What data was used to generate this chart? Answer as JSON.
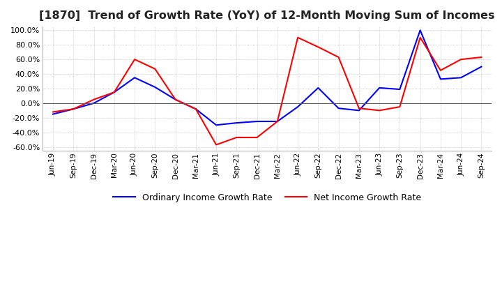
{
  "title": "[1870]  Trend of Growth Rate (YoY) of 12-Month Moving Sum of Incomes",
  "title_fontsize": 11.5,
  "ylim": [
    -0.65,
    1.05
  ],
  "yticks": [
    -0.6,
    -0.4,
    -0.2,
    0.0,
    0.2,
    0.4,
    0.6,
    0.8,
    1.0
  ],
  "background_color": "#ffffff",
  "plot_bg_color": "#ffffff",
  "grid_color": "#aaaaaa",
  "legend_labels": [
    "Ordinary Income Growth Rate",
    "Net Income Growth Rate"
  ],
  "legend_colors": [
    "#0000ff",
    "#ff0000"
  ],
  "x_labels": [
    "Jun-19",
    "Sep-19",
    "Dec-19",
    "Mar-20",
    "Jun-20",
    "Sep-20",
    "Dec-20",
    "Mar-21",
    "Jun-21",
    "Sep-21",
    "Dec-21",
    "Mar-22",
    "Jun-22",
    "Sep-22",
    "Dec-22",
    "Mar-23",
    "Jun-23",
    "Sep-23",
    "Dec-23",
    "Mar-24",
    "Jun-24",
    "Sep-24"
  ],
  "ordinary_income": [
    -0.15,
    -0.08,
    0.0,
    0.15,
    0.35,
    0.22,
    0.05,
    -0.08,
    -0.3,
    -0.27,
    -0.25,
    -0.25,
    -0.05,
    0.21,
    -0.07,
    -0.1,
    0.21,
    0.19,
    1.0,
    0.33,
    0.35,
    0.5
  ],
  "net_income": [
    -0.12,
    -0.08,
    0.05,
    0.15,
    0.6,
    0.47,
    0.05,
    -0.08,
    -0.57,
    -0.47,
    -0.47,
    -0.25,
    0.9,
    0.77,
    0.63,
    -0.07,
    -0.1,
    -0.05,
    0.9,
    0.45,
    0.6,
    0.63
  ]
}
